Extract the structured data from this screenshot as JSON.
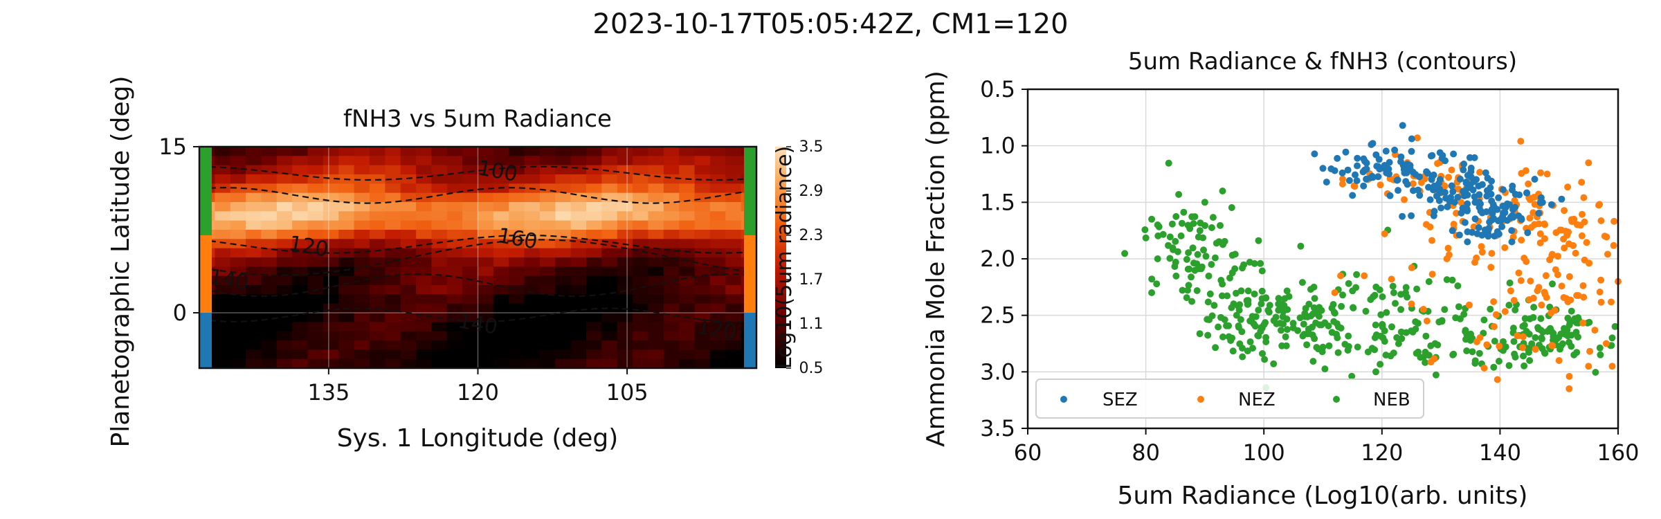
{
  "figure": {
    "title": "2023-10-17T05:05:42Z, CM1=120"
  },
  "chart_data": [
    {
      "type": "heatmap",
      "title": "fNH3 vs 5um Radiance",
      "xlabel": "Sys. 1 Longitude (deg)",
      "ylabel": "Planetographic Latitude (deg)",
      "xlim": [
        148,
        92
      ],
      "ylim": [
        -5,
        15
      ],
      "xticks": [
        "135",
        "120",
        "105"
      ],
      "xtick_values": [
        135,
        120,
        105
      ],
      "yticks": [
        "15",
        "0"
      ],
      "ytick_values": [
        15,
        0
      ],
      "grid": true,
      "colorbar": {
        "label": "Log10(5um radiance)",
        "ticks": [
          "3.5",
          "2.9",
          "2.3",
          "1.7",
          "1.1",
          "0.5"
        ],
        "tick_values": [
          3.5,
          2.9,
          2.3,
          1.7,
          1.1,
          0.5
        ],
        "range": [
          0.5,
          3.5
        ],
        "colormap": "gist_heat"
      },
      "heat_profile": {
        "description_rows_latitude": [
          -5,
          15
        ],
        "bright_band_center_lat": 9.0,
        "bright_band_halfwidth": 3.2,
        "bright_band_peak": 3.0,
        "background_low": 0.9,
        "north_level": 1.9
      },
      "contours": [
        {
          "label": "100",
          "lon": 118,
          "lat": 12.8
        },
        {
          "label": "120",
          "lon": 137,
          "lat": 6.0
        },
        {
          "label": "160",
          "lon": 116,
          "lat": 6.7
        },
        {
          "label": "140",
          "lon": 120,
          "lat": -1.0
        },
        {
          "label": "140",
          "lon": 145,
          "lat": 3.0
        },
        {
          "label": "120",
          "lon": 96,
          "lat": -1.5
        }
      ],
      "zone_bars": [
        {
          "zone": "SEZ",
          "lat_range": [
            -5,
            0
          ],
          "color": "#1f77b4"
        },
        {
          "zone": "NEZ",
          "lat_range": [
            0,
            7
          ],
          "color": "#ff7f0e"
        },
        {
          "zone": "NEB",
          "lat_range": [
            7,
            15
          ],
          "color": "#2ca02c"
        }
      ]
    },
    {
      "type": "scatter",
      "title": "5um Radiance & fNH3 (contours)",
      "xlabel": "5um Radiance (Log10(arb. units)",
      "ylabel": "Ammonia Mole Fraction (ppm)",
      "xlim": [
        60,
        160
      ],
      "ylim": [
        3.5,
        0.5
      ],
      "y_inverted": true,
      "xticks": [
        "60",
        "80",
        "100",
        "120",
        "140",
        "160"
      ],
      "xtick_values": [
        60,
        80,
        100,
        120,
        140,
        160
      ],
      "yticks": [
        "0.5",
        "1.0",
        "1.5",
        "2.0",
        "2.5",
        "3.0",
        "3.5"
      ],
      "ytick_values": [
        0.5,
        1.0,
        1.5,
        2.0,
        2.5,
        3.0,
        3.5
      ],
      "grid": true,
      "legend_position": "lower-left",
      "series": [
        {
          "name": "SEZ",
          "color": "#1f77b4",
          "n": 220,
          "cloud": [
            [
              122,
              1.2,
              6,
              0.1
            ],
            [
              133,
              1.4,
              6,
              0.1
            ],
            [
              140,
              1.6,
              4,
              0.12
            ]
          ],
          "points": [
            [
              110,
              1.2
            ],
            [
              112,
              1.22
            ],
            [
              123.5,
              0.82
            ],
            [
              119,
              1.08
            ],
            [
              125,
              1.05
            ],
            [
              138,
              1.8
            ],
            [
              142,
              1.85
            ],
            [
              130,
              1.55
            ]
          ]
        },
        {
          "name": "NEZ",
          "color": "#ff7f0e",
          "n": 230,
          "cloud": [
            [
              145,
              1.65,
              6,
              0.2
            ],
            [
              152,
              2.0,
              5,
              0.35
            ],
            [
              135,
              1.7,
              8,
              0.25
            ],
            [
              125,
              1.3,
              6,
              0.1
            ],
            [
              145,
              2.4,
              8,
              0.35
            ]
          ],
          "points": [
            [
              143.5,
              0.96
            ],
            [
              126,
              0.93
            ],
            [
              113,
              2.15
            ],
            [
              117,
              2.15
            ],
            [
              112,
              2.3
            ],
            [
              125,
              2.4
            ],
            [
              131,
              2.0
            ],
            [
              139,
              2.6
            ],
            [
              146,
              2.8
            ],
            [
              150,
              2.9
            ],
            [
              155,
              2.95
            ],
            [
              158,
              2.75
            ],
            [
              159,
              2.95
            ],
            [
              160,
              2.2
            ],
            [
              155,
              1.15
            ],
            [
              148,
              1.25
            ]
          ]
        },
        {
          "name": "NEB",
          "color": "#2ca02c",
          "n": 470,
          "cloud": [
            [
              88,
              1.9,
              4,
              0.22
            ],
            [
              95,
              2.4,
              5,
              0.2
            ],
            [
              103,
              2.55,
              6,
              0.18
            ],
            [
              113,
              2.55,
              6,
              0.2
            ],
            [
              125,
              2.55,
              7,
              0.2
            ],
            [
              140,
              2.7,
              8,
              0.15
            ],
            [
              150,
              2.65,
              6,
              0.15
            ]
          ],
          "points": [
            [
              81,
              1.65
            ],
            [
              82,
              1.7
            ],
            [
              81,
              2.3
            ],
            [
              82,
              2.0
            ],
            [
              93,
              1.4
            ],
            [
              90,
              1.5
            ],
            [
              119,
              2.25
            ],
            [
              122,
              2.3
            ],
            [
              129,
              2.75
            ],
            [
              132,
              2.85
            ],
            [
              145,
              2.9
            ],
            [
              157,
              2.85
            ],
            [
              159,
              2.7
            ]
          ]
        }
      ]
    }
  ]
}
